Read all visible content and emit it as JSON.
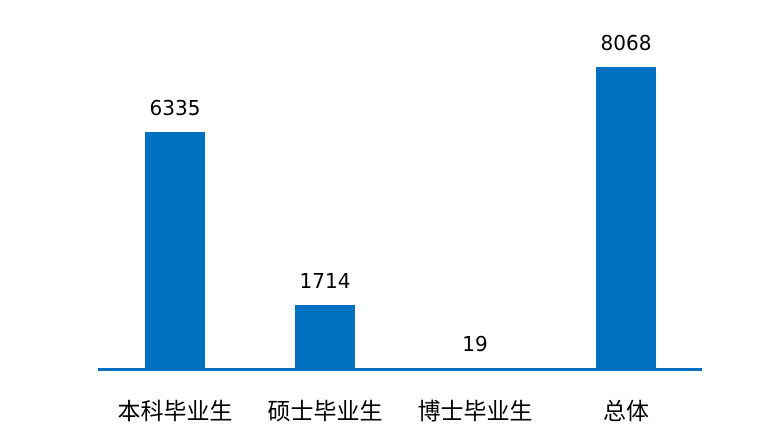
{
  "chart_data": {
    "type": "bar",
    "title": "",
    "xlabel": "",
    "ylabel": "",
    "categories": [
      "本科毕业生",
      "硕士毕业生",
      "博士毕业生",
      "总体"
    ],
    "values": [
      6335,
      1714,
      19,
      8068
    ],
    "value_labels": [
      "6335",
      "1714",
      "19",
      "8068"
    ],
    "ylim": [
      0,
      8068
    ],
    "grid": false,
    "legend": null,
    "bar_color": "#0070C0"
  }
}
